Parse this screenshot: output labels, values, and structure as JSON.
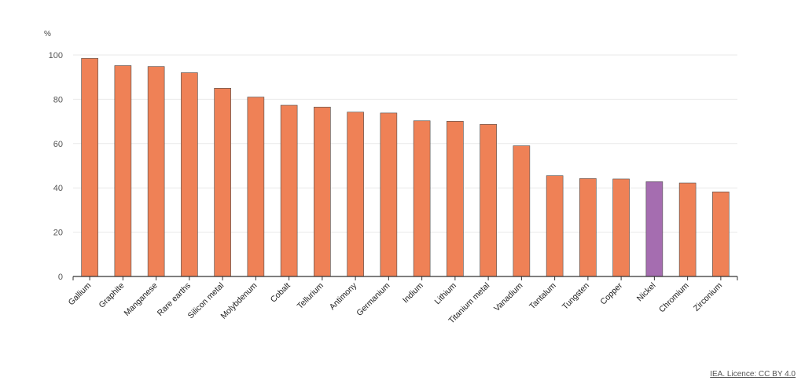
{
  "credit": "IEA. Licence: CC BY 4.0",
  "colors": {
    "default_bar": "#ef8156",
    "highlight_bar": "#a56db0",
    "grid": "#e9e9e9",
    "axis": "#333333"
  },
  "chart_data": {
    "type": "bar",
    "ylabel": "%",
    "ylim": [
      0,
      100
    ],
    "yticks": [
      0,
      20,
      40,
      60,
      80,
      100
    ],
    "grid": true,
    "categories": [
      "Gallium",
      "Graphite",
      "Manganese",
      "Rare earths",
      "Silicon metal",
      "Molybdenum",
      "Cobalt",
      "Tellurium",
      "Antimony",
      "Germanium",
      "Indium",
      "Lithium",
      "Titanium metal",
      "Vanadium",
      "Tantalum",
      "Tungsten",
      "Copper",
      "Nickel",
      "Chromium",
      "Zirconium"
    ],
    "values": [
      98.5,
      95.2,
      94.8,
      92,
      85,
      81,
      77.3,
      76.5,
      74.2,
      73.8,
      70.3,
      70.1,
      68.7,
      59,
      45.5,
      44.2,
      44,
      42.8,
      42.2,
      38.2
    ],
    "highlight": "Nickel"
  }
}
